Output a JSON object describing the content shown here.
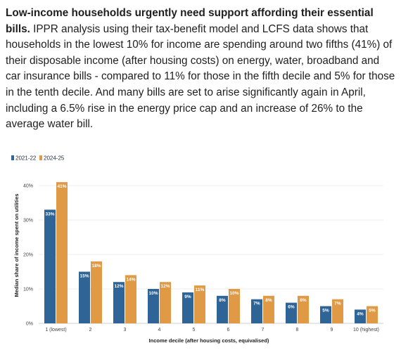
{
  "article": {
    "headline": "Low-income households urgently need support affording their essential bills.",
    "body": "IPPR analysis using their tax-benefit model and LCFS data shows that households in the lowest 10% for income are spending around two fifths (41%) of their disposable income (after housing costs) on energy, water, broadband and car insurance bills - compared to 11% for those in the fifth decile and 5% for those in the tenth decile. And many bills are set to arise significantly again in April, including a 6.5% rise in the energy price cap and an increase of 26% to the average water bill."
  },
  "chart_data": {
    "type": "bar",
    "categories": [
      "1 (lowest)",
      "2",
      "3",
      "4",
      "5",
      "6",
      "7",
      "8",
      "9",
      "10 (highest)"
    ],
    "series": [
      {
        "name": "2021-22",
        "color": "#2e6496",
        "values": [
          33,
          15,
          12,
          10,
          9,
          8,
          7,
          6,
          5,
          4
        ],
        "labels": [
          "33%",
          "15%",
          "12%",
          "10%",
          "9%",
          "8%",
          "7%",
          "6%",
          "5%",
          "4%"
        ]
      },
      {
        "name": "2024-25",
        "color": "#e09a45",
        "values": [
          41,
          18,
          14,
          12,
          11,
          10,
          8,
          8,
          7,
          5
        ],
        "labels": [
          "41%",
          "18%",
          "14%",
          "12%",
          "11%",
          "10%",
          "8%",
          "8%",
          "7%",
          "5%"
        ]
      }
    ],
    "xlabel": "Income decile (after housing costs, equivalised)",
    "ylabel": "Median share of income spent on utilities",
    "ylim": [
      0,
      40
    ],
    "yticks": [
      0,
      10,
      20,
      30,
      40
    ],
    "ytick_labels": [
      "0%",
      "10%",
      "20%",
      "30%",
      "40%"
    ],
    "grid": true,
    "legend_position": "top-left"
  }
}
